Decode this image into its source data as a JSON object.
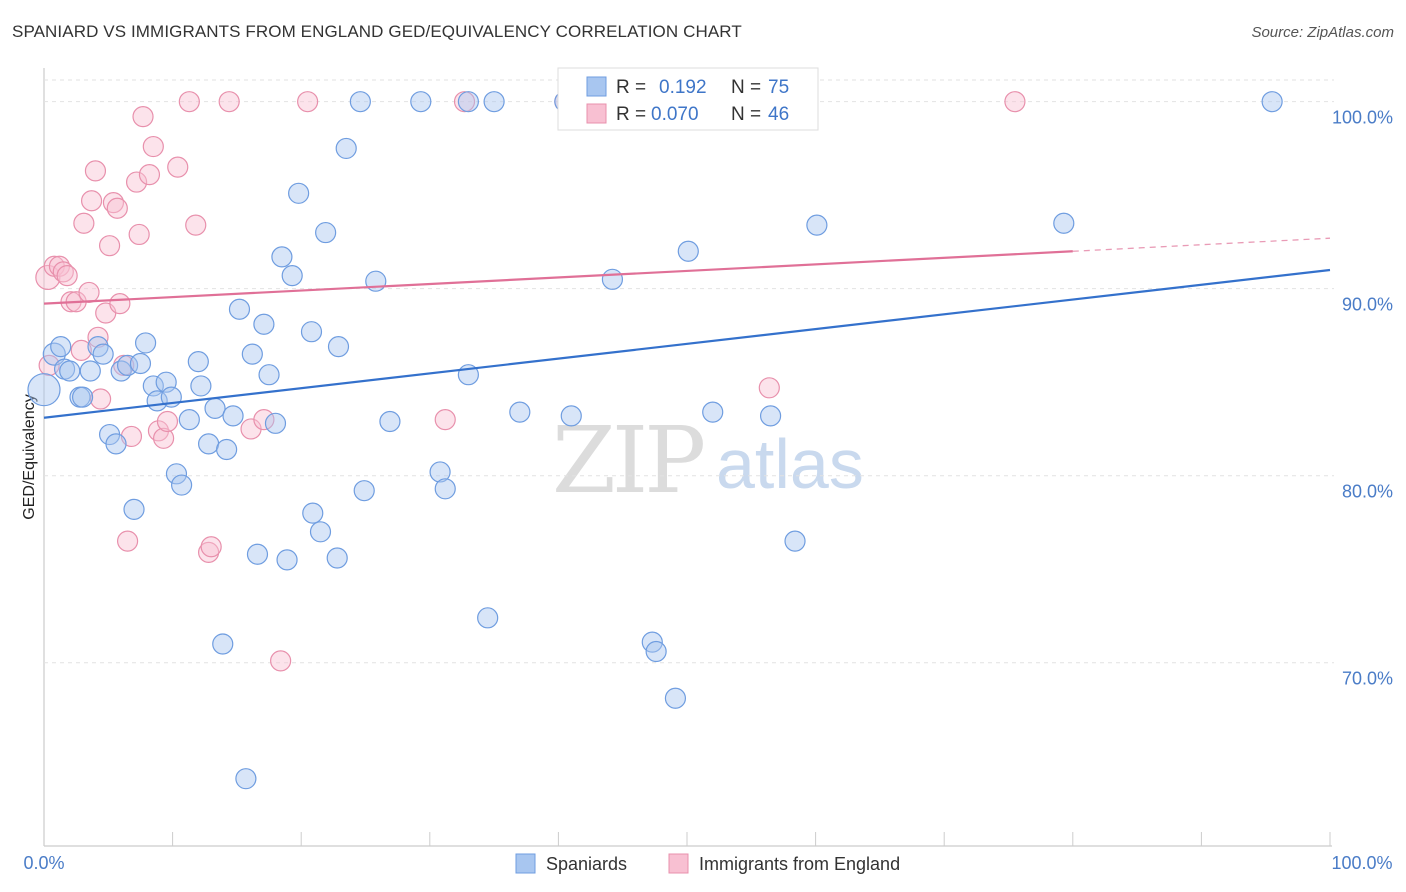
{
  "title": "SPANIARD VS IMMIGRANTS FROM ENGLAND GED/EQUIVALENCY CORRELATION CHART",
  "source": "Source: ZipAtlas.com",
  "watermark": {
    "zip": "ZIP",
    "atlas": "atlas"
  },
  "legend": {
    "r_label": "R =",
    "n_label": "N =",
    "rows": [
      {
        "r": "0.192",
        "n": "75",
        "color": "#a8c6f0",
        "stroke": "#6f9de0"
      },
      {
        "r": "0.070",
        "n": "46",
        "color": "#f8c0d2",
        "stroke": "#e890ac"
      }
    ]
  },
  "bottom_legend": [
    "Spaniards",
    "Immigrants from England"
  ],
  "chart_data": {
    "type": "scatter",
    "title": "SPANIARD VS IMMIGRANTS FROM ENGLAND GED/EQUIVALENCY CORRELATION CHART",
    "xlabel": "",
    "ylabel": "GED/Equivalency",
    "xlim": [
      0,
      100
    ],
    "ylim": [
      60.2,
      101.8
    ],
    "x_tick_labels": [
      "0.0%",
      "100.0%"
    ],
    "y_ticks": [
      100,
      90,
      80,
      70
    ],
    "y_tick_labels": [
      "100.0%",
      "90.0%",
      "80.0%",
      "70.0%"
    ],
    "grid": true,
    "legend_position": "top-center",
    "series": [
      {
        "name": "Spaniards",
        "color": "#a8c6f0",
        "stroke": "#6f9de0",
        "line_color": "#3471cc",
        "trend": {
          "x": [
            0,
            100
          ],
          "y": [
            83.1,
            91.0
          ]
        },
        "points": [
          [
            0,
            84.6,
            32
          ],
          [
            0.8,
            86.5,
            22
          ],
          [
            1.3,
            86.9,
            20
          ],
          [
            1.6,
            85.7,
            20
          ],
          [
            2.0,
            85.6,
            20
          ],
          [
            2.8,
            84.2,
            20
          ],
          [
            3.0,
            84.2,
            20
          ],
          [
            3.6,
            85.6,
            20
          ],
          [
            4.2,
            86.9,
            20
          ],
          [
            4.6,
            86.5,
            20
          ],
          [
            5.1,
            82.2,
            20
          ],
          [
            5.6,
            81.7,
            20
          ],
          [
            6.0,
            85.6,
            20
          ],
          [
            6.5,
            85.9,
            20
          ],
          [
            7.0,
            78.2,
            20
          ],
          [
            7.5,
            86.0,
            20
          ],
          [
            7.9,
            87.1,
            20
          ],
          [
            8.5,
            84.8,
            20
          ],
          [
            8.8,
            84.0,
            20
          ],
          [
            9.5,
            85.0,
            20
          ],
          [
            9.9,
            84.2,
            20
          ],
          [
            10.3,
            80.1,
            20
          ],
          [
            10.7,
            79.5,
            20
          ],
          [
            11.3,
            83.0,
            20
          ],
          [
            12.0,
            86.1,
            20
          ],
          [
            12.2,
            84.8,
            20
          ],
          [
            12.8,
            81.7,
            20
          ],
          [
            13.3,
            83.6,
            20
          ],
          [
            13.9,
            71.0,
            20
          ],
          [
            14.2,
            81.4,
            20
          ],
          [
            14.7,
            83.2,
            20
          ],
          [
            15.2,
            88.9,
            20
          ],
          [
            15.7,
            63.8,
            20
          ],
          [
            16.2,
            86.5,
            20
          ],
          [
            16.6,
            75.8,
            20
          ],
          [
            17.1,
            88.1,
            20
          ],
          [
            17.5,
            85.4,
            20
          ],
          [
            18.0,
            82.8,
            20
          ],
          [
            18.5,
            91.7,
            20
          ],
          [
            18.9,
            75.5,
            20
          ],
          [
            19.3,
            90.7,
            20
          ],
          [
            19.8,
            95.1,
            20
          ],
          [
            20.8,
            87.7,
            20
          ],
          [
            20.9,
            78.0,
            20
          ],
          [
            21.5,
            77.0,
            20
          ],
          [
            21.9,
            93.0,
            20
          ],
          [
            22.8,
            75.6,
            20
          ],
          [
            22.9,
            86.9,
            20
          ],
          [
            23.5,
            97.5,
            20
          ],
          [
            24.6,
            100.0,
            20
          ],
          [
            24.9,
            79.2,
            20
          ],
          [
            25.8,
            90.4,
            20
          ],
          [
            26.9,
            82.9,
            20
          ],
          [
            29.3,
            100.0,
            20
          ],
          [
            30.8,
            80.2,
            20
          ],
          [
            31.2,
            79.3,
            20
          ],
          [
            33.0,
            100.0,
            20
          ],
          [
            33.0,
            85.4,
            20
          ],
          [
            34.5,
            72.4,
            20
          ],
          [
            37.0,
            83.4,
            20
          ],
          [
            40.5,
            100.0,
            20
          ],
          [
            41.0,
            83.2,
            20
          ],
          [
            44.2,
            90.5,
            20
          ],
          [
            47.3,
            71.1,
            20
          ],
          [
            47.6,
            70.6,
            20
          ],
          [
            49.1,
            68.1,
            20
          ],
          [
            49.6,
            100.0,
            20
          ],
          [
            50.1,
            92.0,
            20
          ],
          [
            52.0,
            83.4,
            20
          ],
          [
            56.5,
            83.2,
            20
          ],
          [
            58.4,
            76.5,
            20
          ],
          [
            60.1,
            93.4,
            20
          ],
          [
            79.3,
            93.5,
            20
          ],
          [
            95.5,
            100.0,
            20
          ],
          [
            35.0,
            100.0,
            20
          ]
        ]
      },
      {
        "name": "Immigrants from England",
        "color": "#f8c0d2",
        "stroke": "#e890ac",
        "line_color": "#e07097",
        "trend": {
          "x": [
            0,
            80
          ],
          "y": [
            89.2,
            92.0
          ],
          "dashed_extension": {
            "x": [
              80,
              100
            ],
            "y": [
              92.0,
              92.7
            ]
          }
        },
        "points": [
          [
            0.3,
            90.6,
            24
          ],
          [
            0.4,
            85.9,
            20
          ],
          [
            0.8,
            91.2,
            20
          ],
          [
            1.2,
            91.2,
            20
          ],
          [
            1.5,
            90.9,
            20
          ],
          [
            1.8,
            90.7,
            20
          ],
          [
            2.1,
            89.3,
            20
          ],
          [
            2.5,
            89.3,
            20
          ],
          [
            2.9,
            86.7,
            20
          ],
          [
            3.1,
            93.5,
            20
          ],
          [
            3.5,
            89.8,
            20
          ],
          [
            3.7,
            94.7,
            20
          ],
          [
            4.0,
            96.3,
            20
          ],
          [
            4.2,
            87.4,
            20
          ],
          [
            4.4,
            84.1,
            20
          ],
          [
            4.8,
            88.7,
            20
          ],
          [
            5.1,
            92.3,
            20
          ],
          [
            5.4,
            94.6,
            20
          ],
          [
            5.7,
            94.3,
            20
          ],
          [
            5.9,
            89.2,
            20
          ],
          [
            6.2,
            85.9,
            20
          ],
          [
            6.5,
            76.5,
            20
          ],
          [
            6.8,
            82.1,
            20
          ],
          [
            7.2,
            95.7,
            20
          ],
          [
            7.4,
            92.9,
            20
          ],
          [
            7.7,
            99.2,
            20
          ],
          [
            8.2,
            96.1,
            20
          ],
          [
            8.5,
            97.6,
            20
          ],
          [
            8.9,
            82.4,
            20
          ],
          [
            9.3,
            82.0,
            20
          ],
          [
            9.6,
            82.9,
            20
          ],
          [
            10.4,
            96.5,
            20
          ],
          [
            11.3,
            100.0,
            20
          ],
          [
            11.8,
            93.4,
            20
          ],
          [
            12.8,
            75.9,
            20
          ],
          [
            13.0,
            76.2,
            20
          ],
          [
            14.4,
            100.0,
            20
          ],
          [
            16.1,
            82.5,
            20
          ],
          [
            17.1,
            83.0,
            20
          ],
          [
            18.4,
            70.1,
            20
          ],
          [
            20.5,
            100.0,
            20
          ],
          [
            31.2,
            83.0,
            20
          ],
          [
            32.7,
            100.0,
            20
          ],
          [
            56.4,
            84.7,
            20
          ],
          [
            75.5,
            100.0,
            20
          ],
          [
            40.5,
            100.0,
            20
          ]
        ]
      }
    ]
  }
}
